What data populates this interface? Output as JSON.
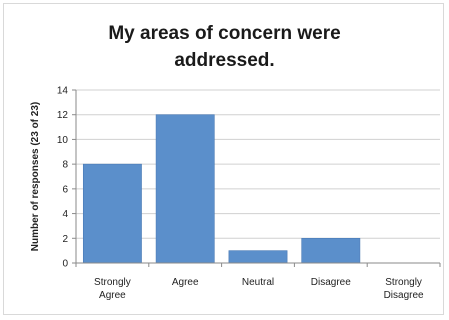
{
  "chart_data": {
    "type": "bar",
    "title": "My areas of concern were\naddressed.",
    "ylabel": "Number of responses (23 of 23)",
    "xlabel": "",
    "categories": [
      "Strongly\nAgree",
      "Agree",
      "Neutral",
      "Disagree",
      "Strongly\nDisagree"
    ],
    "values": [
      8,
      12,
      1,
      2,
      0
    ],
    "ylim": [
      0,
      14
    ],
    "yticks": [
      0,
      2,
      4,
      6,
      8,
      10,
      12,
      14
    ],
    "grid": true,
    "legend": "none",
    "colors": {
      "bar": "#5b8fcb",
      "bar_edge": "#4a7ab5",
      "grid": "#d0d0d0",
      "axis": "#8a8a8a",
      "text": "#222222"
    }
  }
}
